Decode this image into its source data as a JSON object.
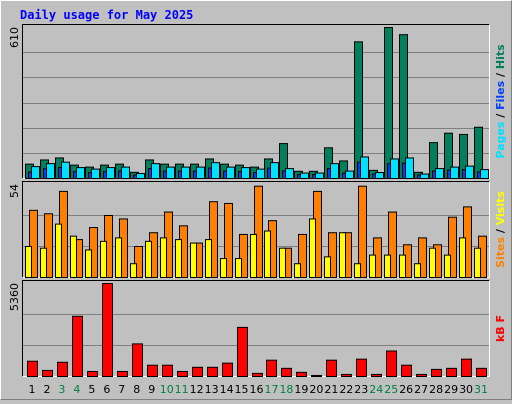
{
  "chart_data": [
    {
      "type": "bar",
      "title": "Daily usage for May 2025",
      "ylim": [
        0,
        610
      ],
      "yticks": [
        610
      ],
      "grid_divisions": 6,
      "legend_separator": " / ",
      "series": [
        {
          "name": "Pages",
          "color": "#00E0FF",
          "values": [
            48,
            60,
            66,
            44,
            38,
            44,
            46,
            20,
            60,
            46,
            46,
            46,
            64,
            46,
            44,
            38,
            64,
            40,
            22,
            22,
            60,
            30,
            87,
            24,
            79,
            83,
            18,
            40,
            46,
            50,
            36
          ]
        },
        {
          "name": "Files",
          "color": "#0040FF",
          "values": [
            26,
            40,
            44,
            28,
            24,
            28,
            30,
            14,
            40,
            30,
            30,
            30,
            42,
            30,
            28,
            24,
            42,
            30,
            16,
            16,
            40,
            22,
            66,
            18,
            60,
            62,
            14,
            30,
            34,
            36,
            26
          ]
        },
        {
          "name": "Hits",
          "color": "#00805C",
          "values": [
            58,
            75,
            83,
            54,
            46,
            54,
            58,
            25,
            75,
            58,
            58,
            58,
            79,
            58,
            54,
            46,
            79,
            141,
            29,
            29,
            124,
            71,
            552,
            33,
            610,
            581,
            25,
            145,
            183,
            178,
            207
          ]
        }
      ]
    },
    {
      "type": "bar",
      "ylim": [
        0,
        54
      ],
      "yticks": [
        54
      ],
      "grid_divisions": 3,
      "legend_separator": " / ",
      "series": [
        {
          "name": "Sites",
          "color": "#FF8000",
          "values": [
            39,
            37,
            50,
            22,
            29,
            36,
            34,
            18,
            26,
            38,
            30,
            20,
            44,
            43,
            25,
            53,
            33,
            17,
            25,
            50,
            26,
            26,
            53,
            23,
            38,
            19,
            23,
            19,
            35,
            41,
            24
          ]
        },
        {
          "name": "Visits",
          "color": "#FFFF00",
          "values": [
            18,
            17,
            31,
            24,
            16,
            21,
            23,
            8,
            21,
            23,
            22,
            20,
            22,
            11,
            11,
            25,
            27,
            17,
            8,
            34,
            12,
            26,
            8,
            13,
            13,
            13,
            8,
            17,
            13,
            23,
            17
          ]
        }
      ]
    },
    {
      "type": "bar",
      "ylim": [
        0,
        5360
      ],
      "yticks": [
        5360
      ],
      "grid_divisions": 3,
      "legend_separator": " / ",
      "categories": [
        "1",
        "2",
        "3",
        "4",
        "5",
        "6",
        "7",
        "8",
        "9",
        "10",
        "11",
        "12",
        "13",
        "14",
        "15",
        "16",
        "17",
        "18",
        "19",
        "20",
        "21",
        "22",
        "23",
        "24",
        "25",
        "26",
        "27",
        "28",
        "29",
        "30",
        "31"
      ],
      "category_colors": [
        "#000000",
        "#000000",
        "#008040",
        "#008040",
        "#000000",
        "#000000",
        "#000000",
        "#000000",
        "#000000",
        "#008040",
        "#008040",
        "#000000",
        "#000000",
        "#000000",
        "#000000",
        "#000000",
        "#008040",
        "#008040",
        "#000000",
        "#000000",
        "#000000",
        "#000000",
        "#000000",
        "#008040",
        "#008040",
        "#000000",
        "#000000",
        "#000000",
        "#000000",
        "#000000",
        "#008040"
      ],
      "series": [
        {
          "name": "kB F",
          "color": "#FF0000",
          "values": [
            880,
            350,
            820,
            3470,
            290,
            5360,
            290,
            1880,
            650,
            650,
            290,
            530,
            530,
            770,
            2830,
            180,
            940,
            470,
            240,
            60,
            940,
            120,
            1000,
            120,
            1470,
            650,
            120,
            410,
            470,
            1000,
            470
          ]
        }
      ]
    }
  ]
}
